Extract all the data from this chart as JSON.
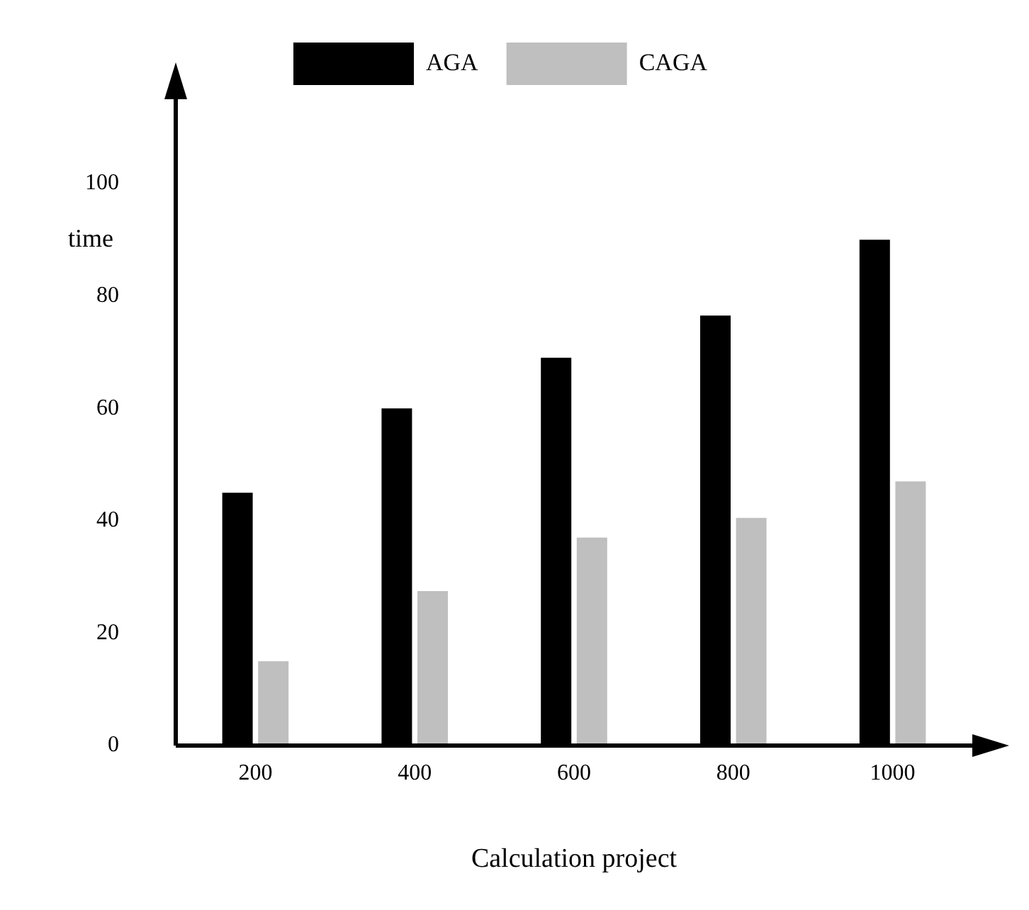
{
  "chart_data": {
    "type": "bar",
    "xlabel": "Calculation project",
    "ylabel": "time",
    "categories": [
      "200",
      "400",
      "600",
      "800",
      "1000"
    ],
    "series": [
      {
        "name": "AGA",
        "color": "#000000",
        "values": [
          45,
          60,
          69,
          76.5,
          90
        ]
      },
      {
        "name": "CAGA",
        "color": "#bfbfbf",
        "values": [
          15,
          27.5,
          37,
          40.5,
          47
        ]
      }
    ],
    "ylim": [
      0,
      115
    ],
    "yticks": [
      0,
      20,
      40,
      60,
      80,
      100
    ],
    "legend": "top"
  }
}
